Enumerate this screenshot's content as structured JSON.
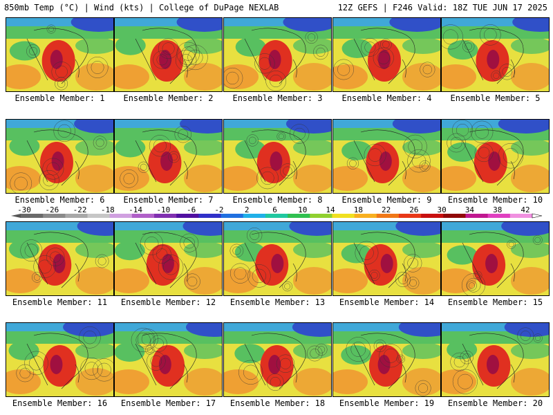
{
  "header": {
    "title_left": "850mb Temp (°C) | Wind (kts) | College of DuPage NEXLAB",
    "title_right": "12Z GEFS | F246 Valid: 18Z TUE JUN 17 2025"
  },
  "members": [
    "Ensemble Member: 1",
    "Ensemble Member: 2",
    "Ensemble Member: 3",
    "Ensemble Member: 4",
    "Ensemble Member: 5",
    "Ensemble Member: 6",
    "Ensemble Member: 7",
    "Ensemble Member: 8",
    "Ensemble Member: 9",
    "Ensemble Member: 10",
    "Ensemble Member: 11",
    "Ensemble Member: 12",
    "Ensemble Member: 13",
    "Ensemble Member: 14",
    "Ensemble Member: 15",
    "Ensemble Member: 16",
    "Ensemble Member: 17",
    "Ensemble Member: 18",
    "Ensemble Member: 19",
    "Ensemble Member: 20"
  ],
  "colorbar": {
    "ticks": [
      "-30",
      "-26",
      "-22",
      "-18",
      "-14",
      "-10",
      "-6",
      "-2",
      "2",
      "6",
      "10",
      "14",
      "18",
      "22",
      "26",
      "30",
      "34",
      "38",
      "42"
    ],
    "colors": [
      "#6a6a6a",
      "#8a8a8a",
      "#a8a8a8",
      "#c6c6c6",
      "#d0a0e0",
      "#b060c8",
      "#8030b0",
      "#5010a0",
      "#3030c8",
      "#2070e0",
      "#20b0e8",
      "#20c8a0",
      "#30c050",
      "#90d030",
      "#f0e020",
      "#f8b020",
      "#f07818",
      "#e83818",
      "#c81010",
      "#900808",
      "#c01890",
      "#e040c0",
      "#f090e0"
    ]
  },
  "palette": {
    "cold": "#3050c8",
    "cool": "#40a8d8",
    "mild": "#58c060",
    "warm": "#e8e040",
    "hot": "#f09030",
    "very_hot": "#e03020",
    "extreme": "#a01040"
  }
}
